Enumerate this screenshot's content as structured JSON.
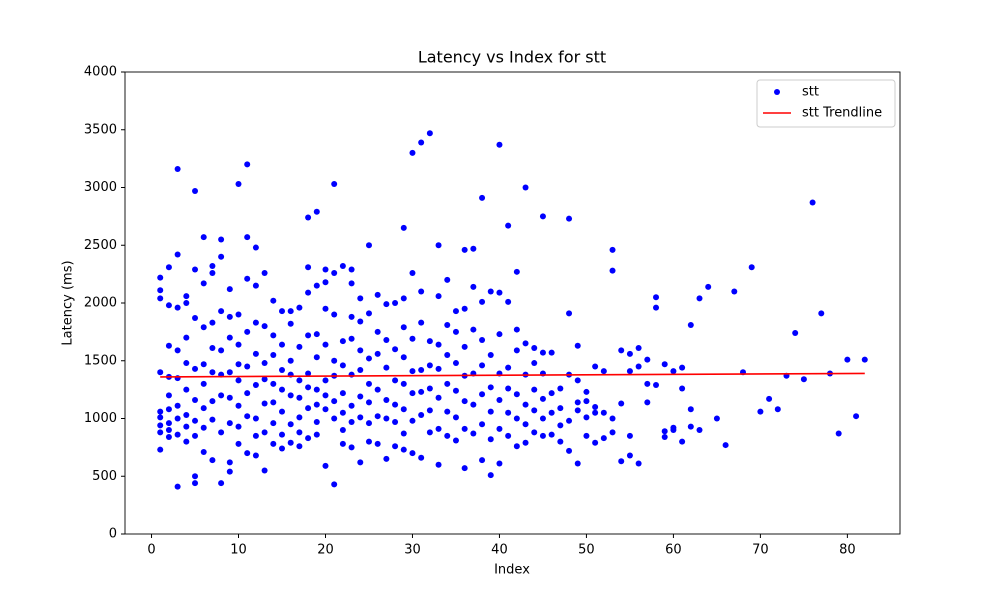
{
  "chart_data": {
    "type": "scatter",
    "title": "Latency vs Index for stt",
    "x_label": "Index",
    "y_label": "Latency (ms)",
    "xlim": [
      -3.05,
      86.05
    ],
    "ylim": [
      0,
      4000
    ],
    "xticks": [
      0,
      10,
      20,
      30,
      40,
      50,
      60,
      70,
      80
    ],
    "yticks": [
      0,
      500,
      1000,
      1500,
      2000,
      2500,
      3000,
      3500,
      4000
    ],
    "legend": "upper right",
    "series": [
      {
        "name": "stt",
        "color": "#0000ff",
        "kind": "scatter",
        "x": [
          1,
          1,
          1,
          1,
          1,
          1,
          1,
          1,
          1,
          2,
          2,
          2,
          2,
          2,
          2,
          2,
          2,
          2,
          3,
          3,
          3,
          3,
          3,
          3,
          3,
          3,
          3,
          4,
          4,
          4,
          4,
          4,
          4,
          4,
          4,
          5,
          5,
          5,
          5,
          5,
          5,
          5,
          5,
          5,
          6,
          6,
          6,
          6,
          6,
          6,
          6,
          6,
          7,
          7,
          7,
          7,
          7,
          7,
          7,
          7,
          8,
          8,
          8,
          8,
          8,
          8,
          8,
          8,
          9,
          9,
          9,
          9,
          9,
          9,
          9,
          9,
          10,
          10,
          10,
          10,
          10,
          10,
          10,
          10,
          11,
          11,
          11,
          11,
          11,
          11,
          11,
          11,
          12,
          12,
          12,
          12,
          12,
          12,
          12,
          12,
          13,
          13,
          13,
          13,
          13,
          13,
          13,
          14,
          14,
          14,
          14,
          14,
          14,
          14,
          15,
          15,
          15,
          15,
          15,
          15,
          15,
          16,
          16,
          16,
          16,
          16,
          16,
          16,
          17,
          17,
          17,
          17,
          17,
          17,
          17,
          18,
          18,
          18,
          18,
          18,
          18,
          18,
          18,
          19,
          19,
          19,
          19,
          19,
          19,
          19,
          19,
          20,
          20,
          20,
          20,
          20,
          20,
          20,
          20,
          21,
          21,
          21,
          21,
          21,
          21,
          21,
          21,
          22,
          22,
          22,
          22,
          22,
          22,
          22,
          23,
          23,
          23,
          23,
          23,
          23,
          23,
          23,
          24,
          24,
          24,
          24,
          24,
          24,
          24,
          25,
          25,
          25,
          25,
          25,
          25,
          25,
          26,
          26,
          26,
          26,
          26,
          26,
          27,
          27,
          27,
          27,
          27,
          27,
          28,
          28,
          28,
          28,
          28,
          28,
          29,
          29,
          29,
          29,
          29,
          29,
          29,
          29,
          30,
          30,
          30,
          30,
          30,
          30,
          30,
          31,
          31,
          31,
          31,
          31,
          31,
          31,
          32,
          32,
          32,
          32,
          32,
          32,
          33,
          33,
          33,
          33,
          33,
          33,
          33,
          34,
          34,
          34,
          34,
          34,
          34,
          35,
          35,
          35,
          35,
          35,
          35,
          36,
          36,
          36,
          36,
          36,
          36,
          36,
          37,
          37,
          37,
          37,
          37,
          37,
          38,
          38,
          38,
          38,
          38,
          38,
          38,
          39,
          39,
          39,
          39,
          39,
          39,
          40,
          40,
          40,
          40,
          40,
          40,
          40,
          41,
          41,
          41,
          41,
          41,
          41,
          42,
          42,
          42,
          42,
          42,
          42,
          43,
          43,
          43,
          43,
          43,
          43,
          44,
          44,
          44,
          44,
          44,
          45,
          45,
          45,
          45,
          45,
          45,
          46,
          46,
          46,
          46,
          47,
          47,
          47,
          47,
          48,
          48,
          48,
          48,
          48,
          49,
          49,
          49,
          49,
          49,
          50,
          50,
          50,
          50,
          51,
          51,
          51,
          51,
          52,
          52,
          52,
          53,
          53,
          53,
          53,
          54,
          54,
          54,
          55,
          55,
          55,
          55,
          56,
          56,
          56,
          57,
          57,
          57,
          58,
          58,
          58,
          59,
          59,
          59,
          60,
          60,
          60,
          61,
          61,
          61,
          62,
          62,
          62,
          63,
          63,
          64,
          65,
          66,
          67,
          68,
          69,
          70,
          71,
          72,
          73,
          74,
          75,
          76,
          77,
          78,
          79,
          80,
          81,
          82
        ],
        "values": [
          2220,
          2110,
          2040,
          1400,
          1060,
          1010,
          940,
          880,
          730,
          2310,
          1980,
          1630,
          1360,
          1200,
          1080,
          960,
          900,
          840,
          3160,
          2420,
          1960,
          1590,
          1350,
          1110,
          1000,
          860,
          410,
          2060,
          2000,
          1700,
          1480,
          1250,
          1030,
          930,
          800,
          2970,
          2290,
          1870,
          1430,
          1160,
          980,
          850,
          500,
          440,
          2570,
          2170,
          1790,
          1470,
          1300,
          1090,
          920,
          710,
          2320,
          2260,
          1830,
          1610,
          1400,
          1150,
          990,
          640,
          2550,
          2400,
          1930,
          1590,
          1380,
          1200,
          880,
          440,
          2120,
          1880,
          1700,
          1400,
          1180,
          960,
          620,
          540,
          3030,
          1900,
          1640,
          1470,
          1330,
          1110,
          930,
          780,
          3200,
          2570,
          2210,
          1750,
          1450,
          1220,
          1020,
          700,
          2480,
          2150,
          1830,
          1560,
          1290,
          1000,
          850,
          680,
          2260,
          1800,
          1480,
          1340,
          1130,
          880,
          550,
          2020,
          1720,
          1550,
          1300,
          1140,
          960,
          780,
          1930,
          1640,
          1420,
          1250,
          1060,
          860,
          740,
          1930,
          1820,
          1500,
          1380,
          1200,
          950,
          790,
          1960,
          1620,
          1330,
          1180,
          1010,
          880,
          760,
          2740,
          2310,
          2090,
          1720,
          1390,
          1270,
          1090,
          830,
          2790,
          2150,
          1730,
          1530,
          1250,
          1120,
          970,
          860,
          2290,
          2180,
          1950,
          1640,
          1330,
          1200,
          1080,
          590,
          3030,
          2260,
          1900,
          1500,
          1370,
          1150,
          1000,
          430,
          2320,
          1670,
          1460,
          1220,
          1050,
          900,
          780,
          2290,
          2170,
          1880,
          1690,
          1380,
          1110,
          970,
          750,
          2040,
          1840,
          1590,
          1420,
          1190,
          1010,
          620,
          2500,
          1910,
          1520,
          1300,
          1140,
          960,
          800,
          2070,
          1750,
          1560,
          1250,
          1020,
          780,
          1990,
          1680,
          1440,
          1160,
          1000,
          650,
          2000,
          1600,
          1330,
          1120,
          970,
          760,
          2650,
          2040,
          1790,
          1530,
          1300,
          1080,
          870,
          730,
          3300,
          2260,
          1690,
          1410,
          1220,
          980,
          700,
          3390,
          2100,
          1830,
          1420,
          1230,
          1030,
          660,
          3470,
          1670,
          1460,
          1260,
          1070,
          880,
          2500,
          2060,
          1640,
          1430,
          1180,
          910,
          600,
          2200,
          1810,
          1550,
          1300,
          1060,
          850,
          1930,
          1750,
          1480,
          1240,
          1010,
          810,
          2460,
          1950,
          1620,
          1370,
          1150,
          910,
          570,
          2470,
          2140,
          1770,
          1390,
          1120,
          870,
          2910,
          2010,
          1680,
          1460,
          1210,
          950,
          640,
          2100,
          1550,
          1270,
          1060,
          820,
          510,
          3370,
          2090,
          1730,
          1390,
          1160,
          910,
          610,
          2670,
          2010,
          1440,
          1260,
          1050,
          850,
          2270,
          1770,
          1590,
          1210,
          1000,
          760,
          3000,
          1650,
          1380,
          1120,
          950,
          790,
          1610,
          1480,
          1250,
          1070,
          880,
          2750,
          1570,
          1390,
          1170,
          1000,
          850,
          1570,
          1220,
          1050,
          860,
          1260,
          1090,
          940,
          800,
          2730,
          1910,
          1380,
          980,
          720,
          1630,
          1330,
          1140,
          1070,
          610,
          1230,
          1150,
          1010,
          850,
          1450,
          1100,
          1050,
          790,
          1410,
          1050,
          830,
          2460,
          2280,
          1000,
          880,
          1590,
          1130,
          630,
          1560,
          1410,
          850,
          680,
          1610,
          1450,
          610,
          1510,
          1300,
          1140,
          2050,
          1960,
          1290,
          1470,
          890,
          840,
          1410,
          920,
          900,
          1440,
          1260,
          800,
          1810,
          1080,
          930,
          2040,
          900,
          2140,
          1000,
          770,
          2100,
          1400,
          2310,
          1060,
          1170,
          1080,
          1370,
          1740,
          1340,
          2870,
          1910,
          1390,
          870,
          1510,
          1020,
          1510
        ]
      },
      {
        "name": "stt Trendline",
        "color": "#ff0000",
        "kind": "line",
        "x": [
          1,
          82
        ],
        "values": [
          1360,
          1390
        ]
      }
    ]
  }
}
